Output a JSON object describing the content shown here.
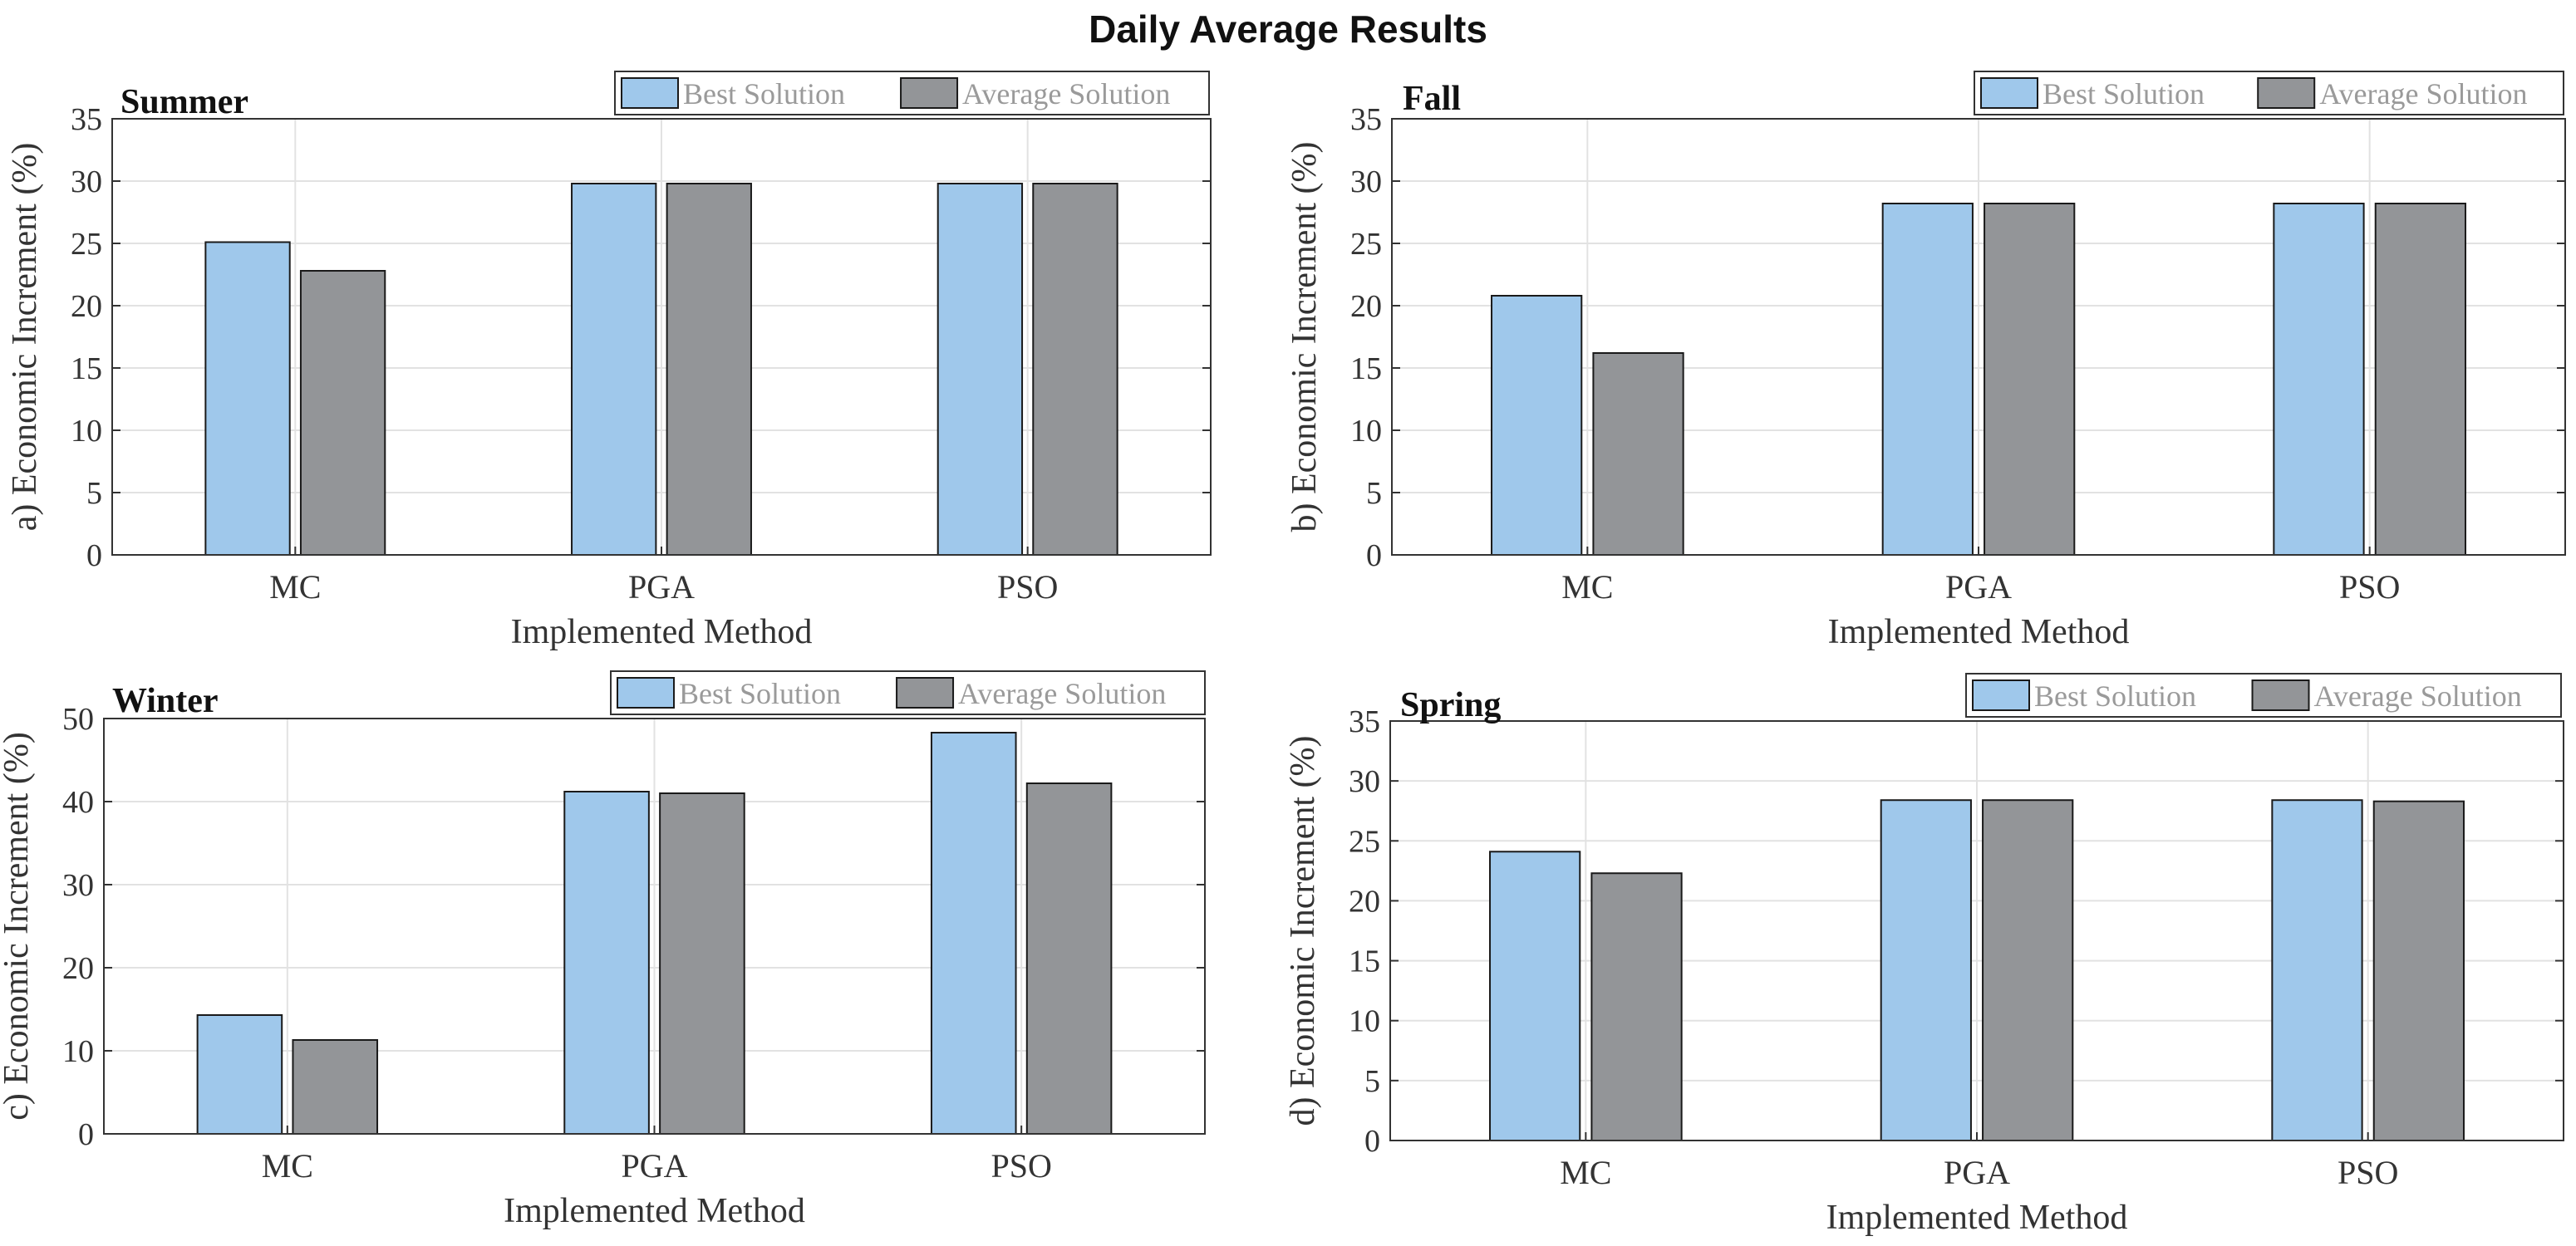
{
  "figure_title": "Daily Average Results",
  "colors": {
    "best": "#9FC8EB",
    "average": "#939598",
    "grid": "#e2e2e2",
    "axis": "#333333"
  },
  "chart_data": [
    {
      "type": "bar",
      "panel_title": "Summer",
      "categories": [
        "MC",
        "PGA",
        "PSO"
      ],
      "series": [
        {
          "name": "Best Solution",
          "values": [
            25.1,
            29.8,
            29.8
          ]
        },
        {
          "name": "Average Solution",
          "values": [
            22.8,
            29.8,
            29.8
          ]
        }
      ],
      "xlabel": "Implemented Method",
      "ylabel": "a)  Economic Increment (%)",
      "ylim": [
        0,
        35
      ],
      "yticks": [
        0,
        5,
        10,
        15,
        20,
        25,
        30,
        35
      ],
      "grid": true,
      "legend": "top-right"
    },
    {
      "type": "bar",
      "panel_title": "Fall",
      "categories": [
        "MC",
        "PGA",
        "PSO"
      ],
      "series": [
        {
          "name": "Best Solution",
          "values": [
            20.8,
            28.2,
            28.2
          ]
        },
        {
          "name": "Average Solution",
          "values": [
            16.2,
            28.2,
            28.2
          ]
        }
      ],
      "xlabel": "Implemented Method",
      "ylabel": "b) Economic Increment (%)",
      "ylim": [
        0,
        35
      ],
      "yticks": [
        0,
        5,
        10,
        15,
        20,
        25,
        30,
        35
      ],
      "grid": true,
      "legend": "top-right"
    },
    {
      "type": "bar",
      "panel_title": "Winter",
      "categories": [
        "MC",
        "PGA",
        "PSO"
      ],
      "series": [
        {
          "name": "Best Solution",
          "values": [
            14.3,
            41.2,
            48.3
          ]
        },
        {
          "name": "Average Solution",
          "values": [
            11.3,
            41.0,
            42.2
          ]
        }
      ],
      "xlabel": "Implemented Method",
      "ylabel": "c) Economic Increment (%)",
      "ylim": [
        0,
        50
      ],
      "yticks": [
        0,
        10,
        20,
        30,
        40,
        50
      ],
      "grid": true,
      "legend": "top-right"
    },
    {
      "type": "bar",
      "panel_title": "Spring",
      "categories": [
        "MC",
        "PGA",
        "PSO"
      ],
      "series": [
        {
          "name": "Best Solution",
          "values": [
            24.1,
            28.4,
            28.4
          ]
        },
        {
          "name": "Average Solution",
          "values": [
            22.3,
            28.4,
            28.3
          ]
        }
      ],
      "xlabel": "Implemented Method",
      "ylabel": "d) Economic Increment (%)",
      "ylim": [
        0,
        35
      ],
      "yticks": [
        0,
        5,
        10,
        15,
        20,
        25,
        30,
        35
      ],
      "grid": true,
      "legend": "top-right"
    }
  ]
}
